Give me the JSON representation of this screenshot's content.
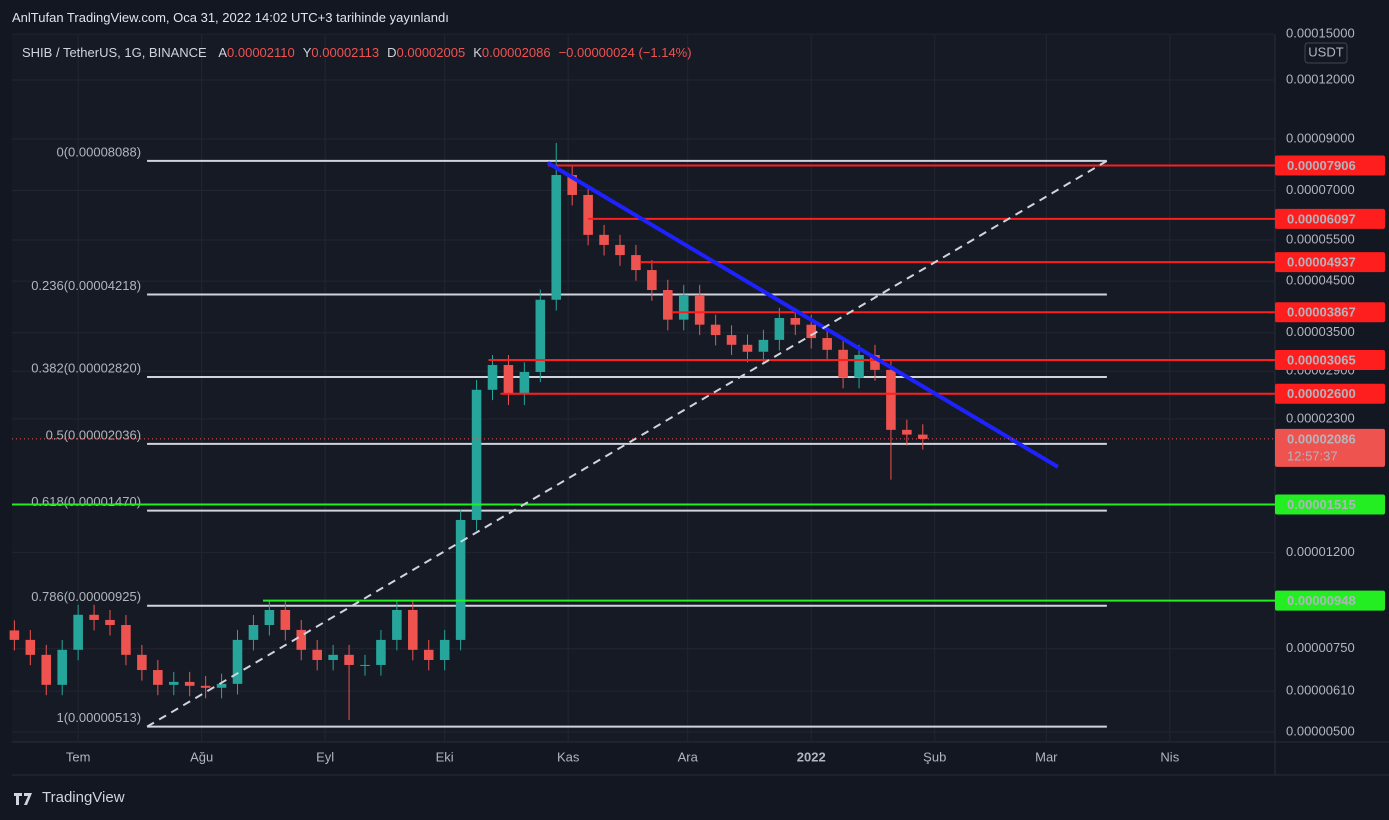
{
  "chart_data": {
    "type": "candlestick",
    "header": "AnlTufan TradingView.com, Oca 31, 2022 14:02 UTC+3 tarihinde yayınlandı",
    "symbol": "SHIB / TetherUS, 1G, BINANCE",
    "ohlc": [
      {
        "key": "A",
        "text": "0.00002110"
      },
      {
        "key": "Y",
        "text": "0.00002113"
      },
      {
        "key": "D",
        "text": "0.00002005"
      },
      {
        "key": "K",
        "text": "0.00002086"
      }
    ],
    "change": "−0.00000024 (−1.14%)",
    "footer": "TradingView",
    "y_unit": "USDT",
    "log_scale": true,
    "grid": true,
    "up_color": "#26a69a",
    "down_color": "#ef5350",
    "xlim": [
      -16.6,
      300.4
    ],
    "ylim": [
      4.76e-06,
      0.0001494
    ],
    "xticks": [
      {
        "value": 0,
        "label": "Tem"
      },
      {
        "value": 31,
        "label": "Ağu"
      },
      {
        "value": 62,
        "label": "Eyl"
      },
      {
        "value": 92,
        "label": "Eki"
      },
      {
        "value": 123,
        "label": "Kas"
      },
      {
        "value": 153,
        "label": "Ara"
      },
      {
        "value": 184,
        "label": "2022"
      },
      {
        "value": 215,
        "label": "Şub"
      },
      {
        "value": 243,
        "label": "Mar"
      },
      {
        "value": 274,
        "label": "Nis"
      }
    ],
    "yticks": [
      {
        "value": 0.00015,
        "label": "0.00015000"
      },
      {
        "value": 0.00012,
        "label": "0.00012000"
      },
      {
        "value": 9e-05,
        "label": "0.00009000"
      },
      {
        "value": 7e-05,
        "label": "0.00007000"
      },
      {
        "value": 5.5e-05,
        "label": "0.00005500"
      },
      {
        "value": 4.5e-05,
        "label": "0.00004500"
      },
      {
        "value": 3.5e-05,
        "label": "0.00003500"
      },
      {
        "value": 2.9e-05,
        "label": "0.00002900"
      },
      {
        "value": 2.3e-05,
        "label": "0.00002300"
      },
      {
        "value": 1.2e-05,
        "label": "0.00001200"
      },
      {
        "value": 7.5e-06,
        "label": "0.00000750"
      },
      {
        "value": 6.1e-06,
        "label": "0.00000610"
      },
      {
        "value": 5e-06,
        "label": "0.00000500"
      }
    ],
    "x": [
      -16,
      -12,
      -8,
      -4,
      0,
      4,
      8,
      12,
      16,
      20,
      24,
      28,
      32,
      36,
      40,
      44,
      48,
      52,
      56,
      60,
      64,
      68,
      72,
      76,
      80,
      84,
      88,
      92,
      96,
      100,
      104,
      108,
      112,
      116,
      120,
      124,
      128,
      132,
      136,
      140,
      144,
      148,
      152,
      156,
      160,
      164,
      168,
      172,
      176,
      180,
      184,
      188,
      192,
      196,
      200,
      204,
      208,
      212
    ],
    "open": [
      8.2e-06,
      7.83e-06,
      7.28e-06,
      6.29e-06,
      7.46e-06,
      8.85e-06,
      8.63e-06,
      8.42e-06,
      7.28e-06,
      6.76e-06,
      6.29e-06,
      6.38e-06,
      6.26e-06,
      6.2e-06,
      6.32e-06,
      7.83e-06,
      8.42e-06,
      9.06e-06,
      8.22e-06,
      7.46e-06,
      7.1e-06,
      7.28e-06,
      6.93e-06,
      6.93e-06,
      7.83e-06,
      9.06e-06,
      7.46e-06,
      7.1e-06,
      7.83e-06,
      1.405e-05,
      2.65e-05,
      2.99e-05,
      2.59e-05,
      2.89e-05,
      4.11e-05,
      7.55e-05,
      6.85e-05,
      5.64e-05,
      5.37e-05,
      5.11e-05,
      4.75e-05,
      4.31e-05,
      3.73e-05,
      4.21e-05,
      3.64e-05,
      3.46e-05,
      3.3e-05,
      3.19e-05,
      3.38e-05,
      3.76e-05,
      3.64e-05,
      3.41e-05,
      3.22e-05,
      2.81e-05,
      3.14e-05,
      2.92e-05,
      2.18e-05,
      2.13e-05
    ],
    "high": [
      8.61e-06,
      8.22e-06,
      7.64e-06,
      7.83e-06,
      9.29e-06,
      9.29e-06,
      9.06e-06,
      8.84e-06,
      7.64e-06,
      7.1e-06,
      6.7e-06,
      6.7e-06,
      6.57e-06,
      6.64e-06,
      8.22e-06,
      8.84e-06,
      9.51e-06,
      9.51e-06,
      8.63e-06,
      7.83e-06,
      7.64e-06,
      7.64e-06,
      7.28e-06,
      8.22e-06,
      9.52e-06,
      9.51e-06,
      7.83e-06,
      8.22e-06,
      1.475e-05,
      2.78e-05,
      3.14e-05,
      3.14e-05,
      3.03e-05,
      4.32e-05,
      8.83e-05,
      7.93e-05,
      7.19e-05,
      5.92e-05,
      5.64e-05,
      5.37e-05,
      4.99e-05,
      4.53e-05,
      4.42e-05,
      4.42e-05,
      3.82e-05,
      3.63e-05,
      3.47e-05,
      3.55e-05,
      3.95e-05,
      3.95e-05,
      3.82e-05,
      3.58e-05,
      3.38e-05,
      3.3e-05,
      3.3e-05,
      3.07e-05,
      2.29e-05,
      2.24e-05
    ],
    "low": [
      7.44e-06,
      6.92e-06,
      5.98e-06,
      5.98e-06,
      7.09e-06,
      8.2e-06,
      8e-06,
      6.92e-06,
      6.42e-06,
      5.98e-06,
      5.98e-06,
      5.95e-06,
      5.89e-06,
      5.89e-06,
      6e-06,
      7.44e-06,
      8e-06,
      7.81e-06,
      7.09e-06,
      6.75e-06,
      6.75e-06,
      5.3e-06,
      6.58e-06,
      6.58e-06,
      7.44e-06,
      7.09e-06,
      6.75e-06,
      6.75e-06,
      7.44e-06,
      1.335e-05,
      2.52e-05,
      2.46e-05,
      2.46e-05,
      2.75e-05,
      3.9e-05,
      6.51e-05,
      5.36e-05,
      5.1e-05,
      4.85e-05,
      4.51e-05,
      4.09e-05,
      3.54e-05,
      3.54e-05,
      3.46e-05,
      3.29e-05,
      3.14e-05,
      3.03e-05,
      3.03e-05,
      3.21e-05,
      3.46e-05,
      3.24e-05,
      3.06e-05,
      2.67e-05,
      2.67e-05,
      2.77e-05,
      1.71e-05,
      2.02e-05,
      1.98e-05
    ],
    "close": [
      7.83e-06,
      7.28e-06,
      6.29e-06,
      7.46e-06,
      8.85e-06,
      8.63e-06,
      8.42e-06,
      7.28e-06,
      6.76e-06,
      6.29e-06,
      6.38e-06,
      6.26e-06,
      6.2e-06,
      6.32e-06,
      7.83e-06,
      8.42e-06,
      9.06e-06,
      8.22e-06,
      7.46e-06,
      7.1e-06,
      7.28e-06,
      6.93e-06,
      6.93e-06,
      7.83e-06,
      9.06e-06,
      7.46e-06,
      7.1e-06,
      7.83e-06,
      1.405e-05,
      2.65e-05,
      2.99e-05,
      2.59e-05,
      2.89e-05,
      4.11e-05,
      7.55e-05,
      6.85e-05,
      5.64e-05,
      5.37e-05,
      5.11e-05,
      4.75e-05,
      4.31e-05,
      3.73e-05,
      4.21e-05,
      3.64e-05,
      3.46e-05,
      3.3e-05,
      3.19e-05,
      3.38e-05,
      3.76e-05,
      3.64e-05,
      3.41e-05,
      3.22e-05,
      2.81e-05,
      3.14e-05,
      2.92e-05,
      2.18e-05,
      2.13e-05,
      2.086e-05
    ],
    "fib": {
      "color": "#d1d4dc",
      "x": [
        17.3,
        258.2
      ],
      "levels": [
        {
          "label": "0(0.00008088)",
          "price": 8.088e-05
        },
        {
          "label": "0.236(0.00004218)",
          "price": 4.218e-05
        },
        {
          "label": "0.382(0.00002820)",
          "price": 2.82e-05
        },
        {
          "label": "0.5(0.00002036)",
          "price": 2.036e-05
        },
        {
          "label": "0.618(0.00001470)",
          "price": 1.47e-05
        },
        {
          "label": "0.786(0.00000925)",
          "price": 9.25e-06
        },
        {
          "label": "1(0.00000513)",
          "price": 5.13e-06
        }
      ]
    },
    "trendlines": [
      {
        "color": "#1e22ff",
        "dashed": false,
        "x": [
          117.9,
          245.9
        ],
        "y": [
          8.01e-05,
          1.82e-05
        ]
      },
      {
        "color": "#d1d4dc",
        "dashed": true,
        "x": [
          17.3,
          258.2
        ],
        "y": [
          5.13e-06,
          8.088e-05
        ]
      }
    ],
    "levels": [
      {
        "price": 7.906e-05,
        "label": "0.00007906",
        "color": "#ff1e1e",
        "x_start": 118
      },
      {
        "price": 6.097e-05,
        "label": "0.00006097",
        "color": "#ff1e1e",
        "x_start": 128
      },
      {
        "price": 4.937e-05,
        "label": "0.00004937",
        "color": "#ff1e1e",
        "x_start": 141
      },
      {
        "price": 3.867e-05,
        "label": "0.00003867",
        "color": "#ff1e1e",
        "x_start": 149
      },
      {
        "price": 3.065e-05,
        "label": "0.00003065",
        "color": "#ff1e1e",
        "x_start": 103
      },
      {
        "price": 2.6e-05,
        "label": "0.00002600",
        "color": "#ff1e1e",
        "x_start": 106
      },
      {
        "price": 1.515e-05,
        "label": "0.00001515",
        "color": "#22ee22",
        "x_start": -16.6
      },
      {
        "price": 9.48e-06,
        "label": "0.00000948",
        "color": "#22ee22",
        "x_start": 46.4
      }
    ],
    "last": {
      "price": 2.086e-05,
      "label": "0.00002086",
      "countdown": "12:57:37",
      "color": "#ef5350"
    }
  }
}
